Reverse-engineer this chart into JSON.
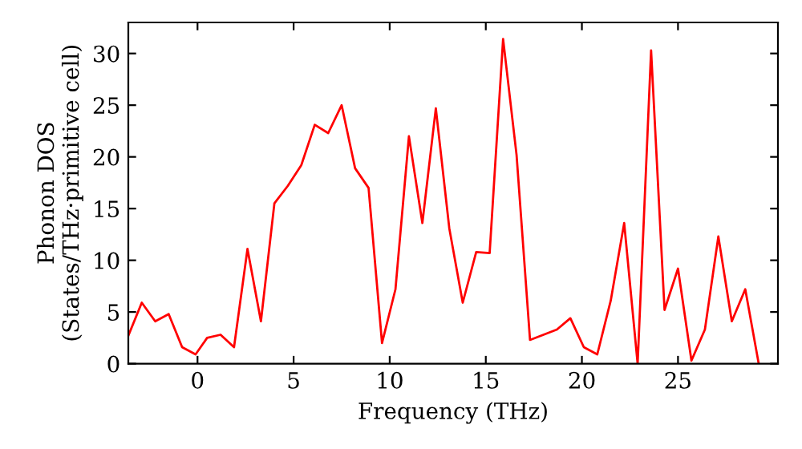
{
  "chart_data": {
    "type": "line",
    "xlabel": "Frequency (THz)",
    "ylabel": "Phonon DOS\n(States/THz·primitive cell)",
    "series": [
      {
        "color": "#ff0000",
        "x": [
          -3.6,
          -2.9,
          -2.2,
          -1.5,
          -0.8,
          -0.1,
          0.5,
          1.2,
          1.9,
          2.6,
          3.3,
          4.0,
          4.7,
          5.4,
          6.1,
          6.8,
          7.5,
          8.2,
          8.9,
          9.6,
          10.3,
          11.0,
          11.7,
          12.4,
          13.1,
          13.8,
          14.5,
          15.2,
          15.9,
          16.6,
          17.3,
          18.0,
          18.7,
          19.4,
          20.1,
          20.8,
          21.5,
          22.2,
          22.9,
          23.6,
          24.3,
          25.0,
          25.7,
          26.4,
          27.1,
          27.8,
          28.5,
          29.2
        ],
        "values": [
          2.7,
          5.9,
          4.1,
          4.8,
          1.6,
          0.9,
          2.5,
          2.8,
          1.6,
          11.1,
          4.1,
          15.5,
          17.2,
          19.2,
          23.1,
          22.3,
          25.0,
          18.9,
          17.0,
          2.0,
          7.2,
          22.0,
          13.6,
          24.7,
          13.1,
          5.9,
          10.8,
          10.7,
          31.4,
          20.2,
          2.3,
          2.8,
          3.3,
          4.4,
          1.6,
          0.9,
          6.1,
          13.6,
          0,
          30.3,
          5.2,
          9.2,
          0.3,
          3.3,
          12.3,
          4.1,
          7.2,
          0
        ]
      }
    ],
    "xlim": [
      -3.6,
      30.2
    ],
    "ylim": [
      0,
      33
    ],
    "xticks": [
      0,
      5,
      10,
      15,
      20,
      25
    ],
    "yticks": [
      0,
      5,
      10,
      15,
      20,
      25,
      30
    ],
    "grid": false,
    "legend": false,
    "marker": "none",
    "line_style": "solid"
  }
}
